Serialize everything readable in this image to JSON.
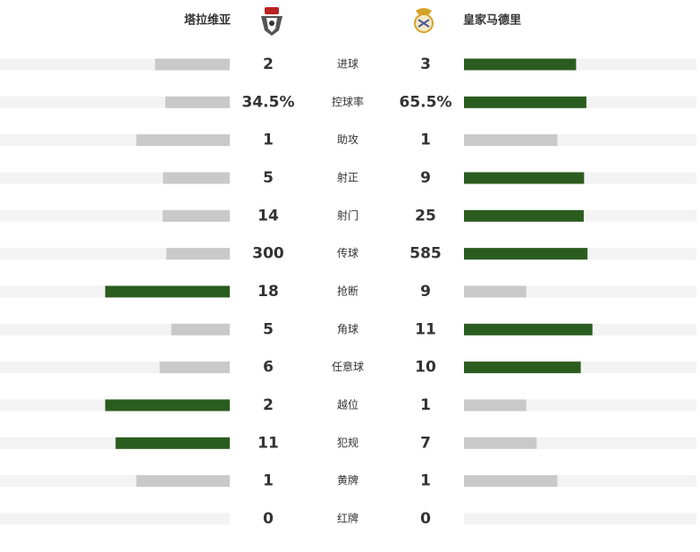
{
  "header": {
    "home": "塔拉维亚",
    "away": "皇家马德里"
  },
  "colors": {
    "leading": "#2b5c1f",
    "trailing": "#c9c9c9",
    "track": "#f3f3f3"
  },
  "stats": [
    {
      "label": "进球",
      "home": 2,
      "away": 3
    },
    {
      "label": "控球率",
      "home": 34.5,
      "away": 65.5,
      "home_label": "34.5%",
      "away_label": "65.5%"
    },
    {
      "label": "助攻",
      "home": 1,
      "away": 1
    },
    {
      "label": "射正",
      "home": 5,
      "away": 9
    },
    {
      "label": "射门",
      "home": 14,
      "away": 25
    },
    {
      "label": "传球",
      "home": 300,
      "away": 585
    },
    {
      "label": "抢断",
      "home": 18,
      "away": 9
    },
    {
      "label": "角球",
      "home": 5,
      "away": 11
    },
    {
      "label": "任意球",
      "home": 6,
      "away": 10
    },
    {
      "label": "越位",
      "home": 2,
      "away": 1
    },
    {
      "label": "犯规",
      "home": 11,
      "away": 7
    },
    {
      "label": "黄牌",
      "home": 1,
      "away": 1
    },
    {
      "label": "红牌",
      "home": 0,
      "away": 0
    }
  ]
}
